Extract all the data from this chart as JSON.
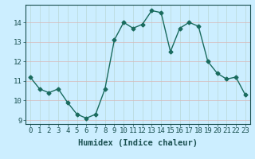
{
  "x": [
    0,
    1,
    2,
    3,
    4,
    5,
    6,
    7,
    8,
    9,
    10,
    11,
    12,
    13,
    14,
    15,
    16,
    17,
    18,
    19,
    20,
    21,
    22,
    23
  ],
  "y": [
    11.2,
    10.6,
    10.4,
    10.6,
    9.9,
    9.3,
    9.1,
    9.3,
    10.6,
    13.1,
    14.0,
    13.7,
    13.9,
    14.6,
    14.5,
    12.5,
    13.7,
    14.0,
    13.8,
    12.0,
    11.4,
    11.1,
    11.2,
    10.3
  ],
  "line_color": "#1a6b5e",
  "marker": "D",
  "marker_size": 2.5,
  "bg_color": "#cceeff",
  "grid_color_vert": "#b8d8d8",
  "grid_color_horiz": "#d8b8b8",
  "xlabel": "Humidex (Indice chaleur)",
  "xlim": [
    -0.5,
    23.5
  ],
  "ylim": [
    8.8,
    14.9
  ],
  "yticks": [
    9,
    10,
    11,
    12,
    13,
    14
  ],
  "xticks": [
    0,
    1,
    2,
    3,
    4,
    5,
    6,
    7,
    8,
    9,
    10,
    11,
    12,
    13,
    14,
    15,
    16,
    17,
    18,
    19,
    20,
    21,
    22,
    23
  ],
  "tick_fontsize": 6.5,
  "xlabel_fontsize": 7.5,
  "line_width": 1.0
}
